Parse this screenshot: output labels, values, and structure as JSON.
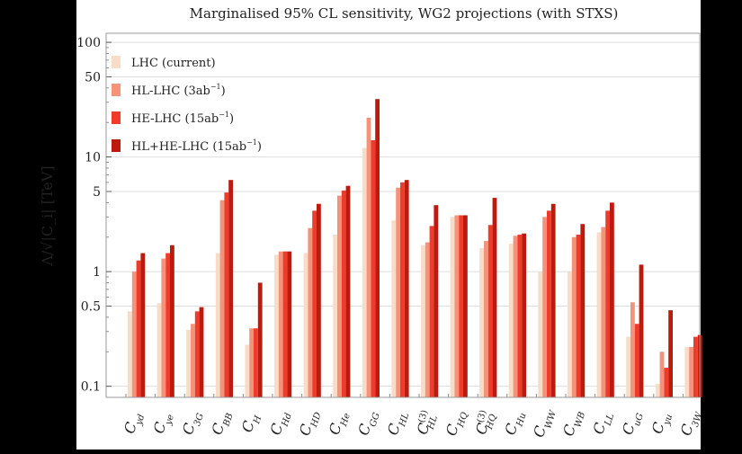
{
  "chart_data": {
    "type": "bar",
    "title": "Marginalised 95% CL sensitivity, WG2 projections (with STXS)",
    "ylabel": "Λ/√|C_i| [TeV]",
    "yscale": "log",
    "ylim": [
      0.08,
      120
    ],
    "yticks": [
      0.1,
      0.5,
      1,
      5,
      10,
      50,
      100
    ],
    "ytick_labels": [
      "0.1",
      "0.5",
      "1",
      "5",
      "10",
      "50",
      "100"
    ],
    "legend_position": "upper-left",
    "categories": [
      "C_yd",
      "C_ye",
      "C_3G",
      "C_BB",
      "C_H",
      "C_Hd",
      "C_HD",
      "C_He",
      "C_GG",
      "C_HL",
      "C_HL(3)",
      "C_HQ",
      "C_HQ(3)",
      "C_Hu",
      "C_WW",
      "C_WB",
      "C_LL",
      "C_uG",
      "C_yu",
      "C_3W"
    ],
    "category_labels": [
      {
        "base": "C",
        "sub": "yd",
        "sup": ""
      },
      {
        "base": "C",
        "sub": "ye",
        "sup": ""
      },
      {
        "base": "C",
        "sub": "3G",
        "sup": ""
      },
      {
        "base": "C",
        "sub": "BB",
        "sup": ""
      },
      {
        "base": "C",
        "sub": "H",
        "sup": ""
      },
      {
        "base": "C",
        "sub": "Hd",
        "sup": ""
      },
      {
        "base": "C",
        "sub": "HD",
        "sup": ""
      },
      {
        "base": "C",
        "sub": "He",
        "sup": ""
      },
      {
        "base": "C",
        "sub": "GG",
        "sup": ""
      },
      {
        "base": "C",
        "sub": "HL",
        "sup": ""
      },
      {
        "base": "C",
        "sub": "HL",
        "sup": "(3)"
      },
      {
        "base": "C",
        "sub": "HQ",
        "sup": ""
      },
      {
        "base": "C",
        "sub": "HQ",
        "sup": "(3)"
      },
      {
        "base": "C",
        "sub": "Hu",
        "sup": ""
      },
      {
        "base": "C",
        "sub": "WW",
        "sup": ""
      },
      {
        "base": "C",
        "sub": "WB",
        "sup": ""
      },
      {
        "base": "C",
        "sub": "LL",
        "sup": ""
      },
      {
        "base": "C",
        "sub": "uG",
        "sup": ""
      },
      {
        "base": "C",
        "sub": "yu",
        "sup": ""
      },
      {
        "base": "C",
        "sub": "3W",
        "sup": ""
      }
    ],
    "series": [
      {
        "name": "LHC (current)",
        "legend_main": "LHC (current)",
        "legend_sup": "",
        "legend_tail": "",
        "color": "#f7dcc8",
        "values": [
          0.45,
          0.53,
          0.31,
          1.45,
          0.23,
          1.4,
          1.45,
          2.1,
          12.0,
          2.8,
          1.7,
          3.0,
          1.6,
          1.75,
          1.0,
          1.0,
          2.2,
          0.27,
          0.105,
          0.22
        ]
      },
      {
        "name": "HL-LHC (3ab⁻¹)",
        "legend_main": "HL-LHC (3ab",
        "legend_sup": "−1",
        "legend_tail": ")",
        "color": "#f4937a",
        "values": [
          1.0,
          1.3,
          0.35,
          4.2,
          0.32,
          1.5,
          2.4,
          4.6,
          22.0,
          5.4,
          1.8,
          3.1,
          1.85,
          2.05,
          3.0,
          2.0,
          2.45,
          0.54,
          0.2,
          0.22
        ]
      },
      {
        "name": "HE-LHC (15ab⁻¹)",
        "legend_main": "HE-LHC (15ab",
        "legend_sup": "−1",
        "legend_tail": ")",
        "color": "#ee3b2b",
        "values": [
          1.25,
          1.45,
          0.45,
          4.9,
          0.32,
          1.5,
          3.4,
          5.1,
          14.0,
          6.0,
          2.5,
          3.1,
          2.55,
          2.1,
          3.4,
          2.1,
          3.4,
          0.35,
          0.145,
          0.27
        ]
      },
      {
        "name": "HL+HE-LHC (15ab⁻¹)",
        "legend_main": "HL+HE-LHC (15ab",
        "legend_sup": "−1",
        "legend_tail": ")",
        "color": "#bb1a0c",
        "values": [
          1.45,
          1.7,
          0.49,
          6.3,
          0.8,
          1.5,
          3.9,
          5.6,
          32.0,
          6.3,
          3.8,
          3.1,
          4.4,
          2.15,
          3.9,
          2.6,
          4.0,
          1.15,
          0.46,
          0.28
        ]
      }
    ]
  }
}
